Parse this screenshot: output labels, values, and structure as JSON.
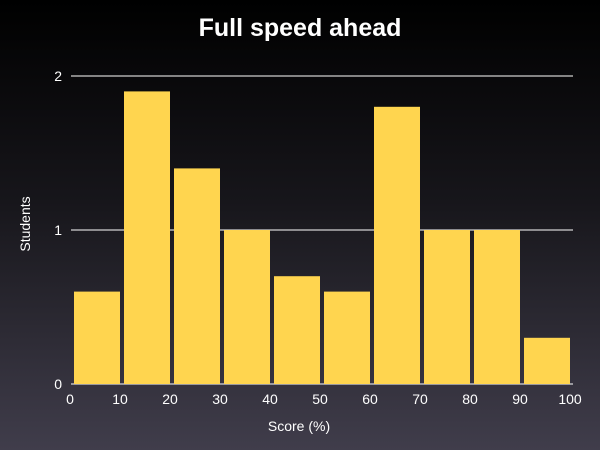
{
  "chart_data": {
    "type": "bar",
    "title": "Full speed ahead",
    "xlabel": "Score (%)",
    "ylabel": "Students",
    "bin_edges": [
      0,
      10,
      20,
      30,
      40,
      50,
      60,
      70,
      80,
      90,
      100
    ],
    "values": [
      0.6,
      1.9,
      1.4,
      1.0,
      0.7,
      0.6,
      1.8,
      1.0,
      1.0,
      0.3
    ],
    "xlim": [
      0,
      100
    ],
    "ylim": [
      0,
      2
    ],
    "xticks": [
      "0",
      "10",
      "20",
      "30",
      "40",
      "50",
      "60",
      "70",
      "80",
      "90",
      "100"
    ],
    "yticks": [
      "0",
      "1",
      "2"
    ],
    "grid": "horizontal",
    "legend": "none",
    "colors": {
      "bar": "#ffd54f",
      "grid": "#ffffff",
      "text": "#ffffff"
    }
  }
}
